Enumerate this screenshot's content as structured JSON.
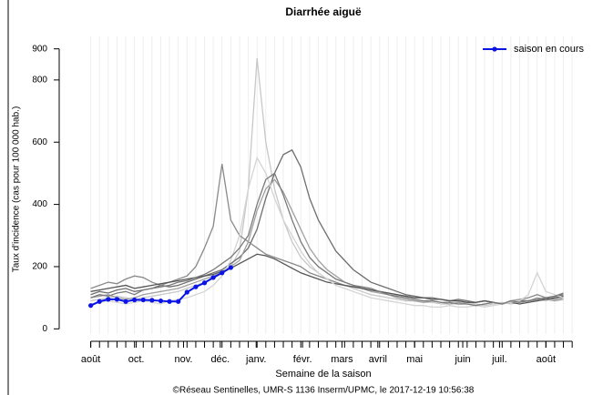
{
  "chart_data": {
    "type": "line",
    "title": "Diarrhée aiguë",
    "x_label": "Semaine de la saison",
    "y_label": "Taux d'incidence (cas pour 100 000 hab.)",
    "footer": "©Réseau Sentinelles, UMR-S 1136 Inserm/UPMC, le 2017-12-19 10:56:38",
    "legend": "topright",
    "grid": true,
    "xlim": [
      -1,
      55.4
    ],
    "ylim": [
      -40,
      940
    ],
    "yticks": [
      0,
      200,
      400,
      600,
      800,
      900
    ],
    "xticks": [
      {
        "value": 0,
        "label": "août"
      },
      {
        "value": 5.2,
        "label": "oct."
      },
      {
        "value": 10.6,
        "label": "nov."
      },
      {
        "value": 14.8,
        "label": "déc."
      },
      {
        "value": 18.9,
        "label": "janv."
      },
      {
        "value": 24.2,
        "label": "févr."
      },
      {
        "value": 28.7,
        "label": "mars"
      },
      {
        "value": 32.8,
        "label": "avril"
      },
      {
        "value": 37,
        "label": "mai"
      },
      {
        "value": 42.5,
        "label": "juin"
      },
      {
        "value": 46.7,
        "label": "juil."
      },
      {
        "value": 52,
        "label": "août"
      }
    ],
    "x": [
      0,
      1,
      2,
      3,
      4,
      5,
      6,
      7,
      8,
      9,
      10,
      11,
      12,
      13,
      14,
      15,
      16,
      17,
      18,
      19,
      20,
      21,
      22,
      23,
      24,
      25,
      26,
      27,
      28,
      29,
      30,
      31,
      32,
      33,
      34,
      35,
      36,
      37,
      38,
      39,
      40,
      41,
      42,
      43,
      44,
      45,
      46,
      47,
      48,
      49,
      50,
      51,
      52,
      53,
      54
    ],
    "series": [
      {
        "color": "#c8c8c8",
        "values": [
          90,
          95,
          100,
          105,
          100,
          95,
          100,
          105,
          110,
          115,
          120,
          130,
          140,
          150,
          160,
          180,
          200,
          250,
          450,
          870,
          600,
          450,
          350,
          280,
          230,
          200,
          180,
          160,
          150,
          140,
          130,
          120,
          110,
          105,
          100,
          95,
          90,
          90,
          85,
          85,
          80,
          80,
          80,
          85,
          80,
          75,
          80,
          85,
          80,
          85,
          90,
          95,
          90,
          100,
          110
        ]
      },
      {
        "color": "#6e6e6e",
        "values": [
          110,
          120,
          115,
          125,
          130,
          120,
          125,
          130,
          140,
          135,
          140,
          150,
          160,
          170,
          180,
          190,
          210,
          230,
          260,
          320,
          420,
          500,
          560,
          575,
          520,
          420,
          350,
          300,
          250,
          220,
          190,
          170,
          150,
          140,
          130,
          120,
          110,
          105,
          100,
          100,
          95,
          90,
          95,
          90,
          85,
          90,
          85,
          80,
          85,
          90,
          90,
          95,
          100,
          105,
          110
        ]
      },
      {
        "color": "#8a8a8a",
        "values": [
          130,
          140,
          150,
          145,
          160,
          170,
          165,
          150,
          140,
          150,
          160,
          170,
          200,
          260,
          330,
          530,
          350,
          300,
          280,
          260,
          240,
          230,
          220,
          210,
          200,
          180,
          170,
          160,
          150,
          140,
          135,
          130,
          125,
          120,
          115,
          110,
          105,
          100,
          100,
          95,
          95,
          90,
          90,
          85,
          85,
          90,
          85,
          80,
          90,
          95,
          100,
          110,
          100,
          95,
          100
        ]
      },
      {
        "color": "#a0a0a0",
        "values": [
          100,
          105,
          110,
          100,
          95,
          100,
          110,
          115,
          120,
          125,
          130,
          140,
          150,
          160,
          170,
          180,
          200,
          220,
          280,
          380,
          450,
          480,
          440,
          380,
          320,
          260,
          220,
          190,
          170,
          150,
          140,
          130,
          120,
          115,
          110,
          100,
          95,
          90,
          85,
          90,
          85,
          80,
          85,
          80,
          75,
          80,
          85,
          80,
          90,
          95,
          90,
          100,
          95,
          90,
          95
        ]
      },
      {
        "color": "#555555",
        "values": [
          120,
          125,
          130,
          135,
          140,
          130,
          135,
          140,
          145,
          150,
          155,
          160,
          165,
          170,
          175,
          185,
          195,
          210,
          225,
          240,
          235,
          225,
          210,
          195,
          180,
          170,
          160,
          150,
          145,
          140,
          135,
          130,
          125,
          120,
          115,
          110,
          105,
          100,
          100,
          95,
          95,
          90,
          90,
          85,
          85,
          90,
          85,
          80,
          85,
          80,
          85,
          90,
          95,
          100,
          105
        ]
      },
      {
        "color": "#d4d4d4",
        "values": [
          80,
          85,
          90,
          85,
          80,
          85,
          90,
          85,
          80,
          90,
          95,
          100,
          110,
          120,
          140,
          170,
          220,
          300,
          450,
          550,
          500,
          420,
          350,
          300,
          250,
          210,
          180,
          160,
          140,
          130,
          120,
          110,
          100,
          95,
          90,
          85,
          80,
          75,
          75,
          70,
          70,
          75,
          70,
          70,
          75,
          70,
          75,
          80,
          85,
          90,
          110,
          180,
          120,
          110,
          100
        ]
      },
      {
        "color": "#7a7a7a",
        "values": [
          100,
          110,
          105,
          115,
          120,
          110,
          125,
          130,
          135,
          140,
          150,
          155,
          165,
          175,
          190,
          210,
          230,
          260,
          300,
          400,
          480,
          500,
          430,
          350,
          280,
          230,
          200,
          180,
          160,
          150,
          140,
          135,
          130,
          120,
          110,
          105,
          100,
          95,
          90,
          90,
          85,
          85,
          80,
          80,
          75,
          80,
          85,
          80,
          90,
          85,
          90,
          95,
          100,
          105,
          115
        ]
      },
      {
        "name": "saison en cours",
        "color": "#0a14e6",
        "markers": true,
        "values": [
          75,
          88,
          95,
          95,
          88,
          93,
          93,
          92,
          90,
          88,
          88,
          118,
          135,
          148,
          165,
          180,
          197,
          null,
          null,
          null,
          null,
          null,
          null,
          null,
          null,
          null,
          null,
          null,
          null,
          null,
          null,
          null,
          null,
          null,
          null,
          null,
          null,
          null,
          null,
          null,
          null,
          null,
          null,
          null,
          null,
          null,
          null,
          null,
          null,
          null,
          null,
          null,
          null,
          null,
          null
        ]
      }
    ]
  }
}
